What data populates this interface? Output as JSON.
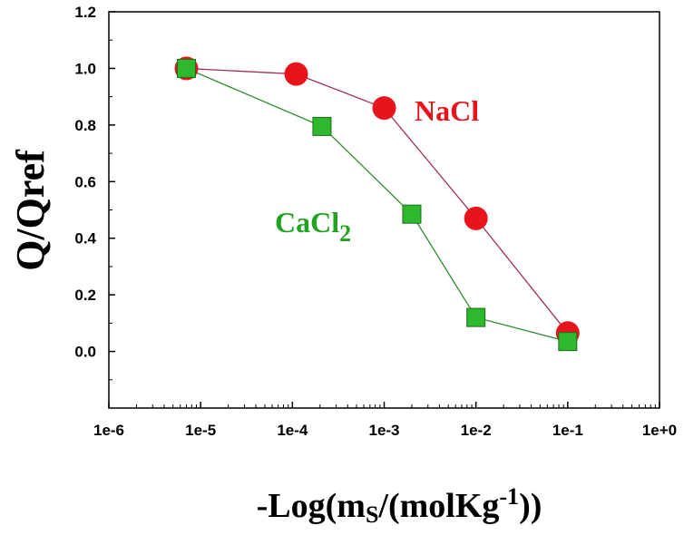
{
  "chart_data": {
    "type": "line",
    "xscale": "log",
    "xlim": [
      1e-06,
      1
    ],
    "ylim": [
      -0.2,
      1.2
    ],
    "xticks": [
      "1e-6",
      "1e-5",
      "1e-4",
      "1e-3",
      "1e-2",
      "1e-1",
      "1e+0"
    ],
    "yticks": [
      "0.0",
      "0.2",
      "0.4",
      "0.6",
      "0.8",
      "1.0",
      "1.2"
    ],
    "ylabel": "Q/Qref",
    "xlabel": {
      "prefix": "-Log(m",
      "sub": "S",
      "mid": "/(molKg",
      "sup": "-1",
      "suffix": "))"
    },
    "series": [
      {
        "name": "NaCl",
        "marker": "circle",
        "marker_color": "#e8141c",
        "line_color": "#a03060",
        "label_color": "#e8141c",
        "x": [
          7e-06,
          0.00011,
          0.001,
          0.01,
          0.1
        ],
        "y": [
          1.0,
          0.98,
          0.86,
          0.47,
          0.065
        ]
      },
      {
        "name": "CaCl",
        "name_sub": "2",
        "marker": "square",
        "marker_color": "#2eb82e",
        "line_color": "#2e8b2e",
        "label_color": "#21a321",
        "x": [
          7e-06,
          0.00021,
          0.002,
          0.01,
          0.1
        ],
        "y": [
          1.0,
          0.795,
          0.485,
          0.12,
          0.035
        ]
      }
    ]
  }
}
